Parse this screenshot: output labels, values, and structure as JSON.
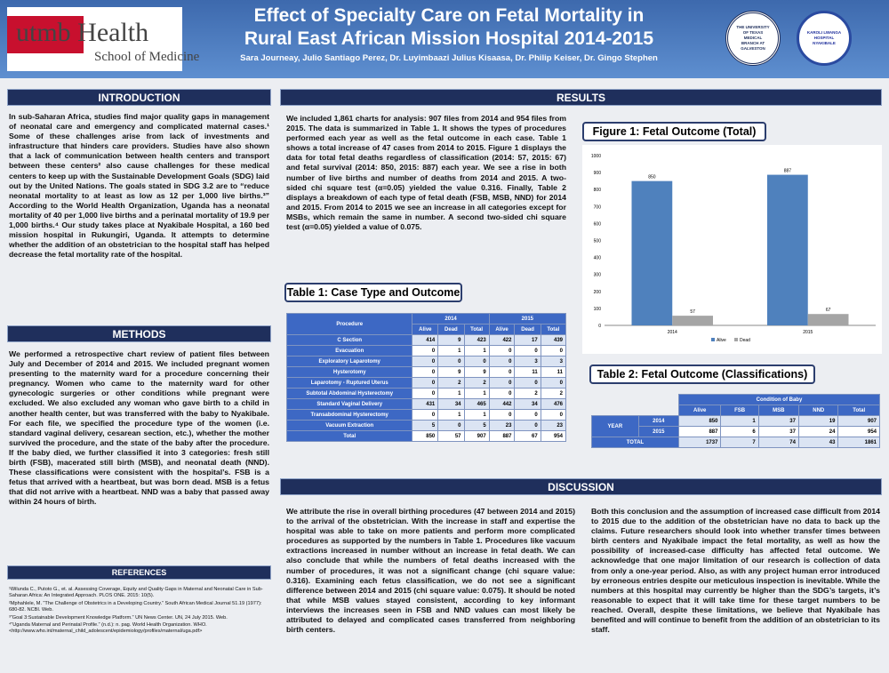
{
  "header": {
    "logo_main": "utmb Health",
    "logo_sub": "School of Medicine",
    "title_line1": "Effect of Specialty Care on Fetal Mortality in",
    "title_line2": "Rural East African Mission Hospital 2014-2015",
    "authors": "Sara Journeay, Julio Santiago Perez, Dr. Luyimbaazi Julius Kisaasa, Dr. Philip Keiser, Dr. Gingo Stephen",
    "seal1": "THE UNIVERSITY OF TEXAS MEDICAL BRANCH AT GALVESTON",
    "seal2": "KAROLI LWANGA HOSPITAL NYAKIBALE"
  },
  "introduction": {
    "heading": "INTRODUCTION",
    "text": "In sub-Saharan Africa, studies find major quality gaps in management of neonatal care and emergency and complicated maternal cases.¹ Some of these challenges arise from lack of investments and infrastructure that hinders care providers. Studies have also shown that a lack of communication between health centers and transport between these centers² also cause challenges for these medical centers to keep up with the Sustainable Development Goals (SDG) laid out by the United Nations. The goals stated in SDG 3.2 are to “reduce neonatal mortality to at least as low as 12 per 1,000 live births.³” According to the World Health Organization, Uganda has a neonatal mortality of 40 per 1,000 live births and a perinatal mortality of 19.9 per 1,000 births.⁴ Our study takes place at Nyakibale Hospital, a 160 bed mission hospital in Rukungiri, Uganda. It attempts to determine whether the addition of an obstetrician to the hospital staff has helped decrease the fetal mortality rate of the hospital."
  },
  "methods": {
    "heading": "METHODS",
    "text": "We performed a retrospective chart review of patient files between July and December of 2014 and 2015. We included pregnant women presenting to the maternity ward for a procedure concerning their pregnancy. Women who came to the maternity ward for other gynecologic surgeries or other conditions while pregnant were excluded. We also excluded any woman who gave birth to a child in another health center, but was transferred with the baby to Nyakibale. For each file, we specified the procedure type of the women (i.e. standard vaginal delivery, cesarean section, etc.), whether the mother survived the procedure, and the state of the baby after the procedure. If the baby died, we further classified it into 3 categories: fresh still birth (FSB), macerated still birth (MSB), and neonatal death (NND). These classifications were consistent with the hospital’s. FSB is a fetus that arrived with a heartbeat, but was born dead. MSB is a fetus that did not arrive with a heartbeat. NND was a baby that passed away within 24 hours of birth."
  },
  "references": {
    "heading": "REFERENCES",
    "items": [
      "¹Wilunda C., Putoto G., et. al. Assessing Coverage, Equity and Quality Gaps in Maternal and Neonatal Care in Sub-Saharan Africa: An Integrated Approach. PLOS ONE. 2015: 10(5).",
      "²Mphahlele, M. “The Challenge of Obstetrics in a Developing Country.” South African Medical Journal 51.19 (1977): 680-82. NCBI. Web.",
      "³“Goal 3:Sustainable Development Knowledge Platform.” UN News Center. UN, 24 July 2015. Web.",
      "⁴“Uganda Maternal and Perinatal Profile.” (n.d.): n. pag. World Health Organization. WHO. <http://www.who.int/maternal_child_adolescent/epidemiology/profiles/maternal/uga.pdf>"
    ]
  },
  "results": {
    "heading": "RESULTS",
    "text": "We included 1,861 charts for analysis: 907 files from 2014 and 954 files from 2015. The data is summarized in Table 1. It shows the types of procedures performed each year as well as the fetal outcome in each case. Table 1 shows a total increase of 47 cases from 2014 to 2015. Figure 1 displays the data for total fetal deaths regardless of classification (2014: 57, 2015: 67) and fetal survival (2014: 850, 2015: 887) each year. We see a rise in both number of live births and number of deaths from 2014 and 2015. A two-sided chi square test (α=0.05) yielded the value 0.316. Finally, Table 2 displays a breakdown of each type of fetal death (FSB, MSB, NND) for 2014 and 2015. From 2014 to 2015 we see an increase in all categories except for MSBs, which remain the same in number. A second two-sided chi square test (α=0.05) yielded a value of 0.075."
  },
  "figure1": {
    "type": "bar",
    "title": "Figure 1: Fetal Outcome (Total)",
    "categories": [
      "2014",
      "2015"
    ],
    "series": [
      {
        "name": "Alive",
        "color": "#4f81bd",
        "values": [
          850,
          887
        ]
      },
      {
        "name": "Dead",
        "color": "#a5a5a5",
        "values": [
          57,
          67
        ]
      }
    ],
    "ylim": [
      0,
      1000
    ],
    "yticks": [
      0,
      100,
      200,
      300,
      400,
      500,
      600,
      700,
      800,
      900,
      1000
    ],
    "grid": false,
    "legend": "bottom"
  },
  "table1": {
    "title": "Table 1: Case Type and Outcome",
    "corner": "Procedure",
    "groups": [
      "2014",
      "2015"
    ],
    "columns": [
      "Alive",
      "Dead",
      "Total",
      "Alive",
      "Dead",
      "Total"
    ],
    "rows": [
      [
        "C Section",
        414,
        9,
        423,
        422,
        17,
        439
      ],
      [
        "Evacuation",
        0,
        1,
        1,
        0,
        0,
        0
      ],
      [
        "Exploratory Laparotomy",
        0,
        0,
        0,
        0,
        3,
        3
      ],
      [
        "Hysterotomy",
        0,
        9,
        9,
        0,
        11,
        11
      ],
      [
        "Laparotomy - Ruptured Uterus",
        0,
        2,
        2,
        0,
        0,
        0
      ],
      [
        "Subtotal Abdominal Hysterectomy",
        0,
        1,
        1,
        0,
        2,
        2
      ],
      [
        "Standard Vaginal Delivery",
        431,
        34,
        465,
        442,
        34,
        476
      ],
      [
        "Transabdominal Hysterectomy",
        0,
        1,
        1,
        0,
        0,
        0
      ],
      [
        "Vacuum Extraction",
        5,
        0,
        5,
        23,
        0,
        23
      ],
      [
        "Total",
        850,
        57,
        907,
        887,
        67,
        954
      ]
    ]
  },
  "table2": {
    "title": "Table 2: Fetal Outcome (Classifications)",
    "group": "Condition of Baby",
    "columns": [
      "Alive",
      "FSB",
      "MSB",
      "NND",
      "Total"
    ],
    "rows": [
      {
        "label": "YEAR",
        "sub": "2014",
        "values": [
          850,
          1,
          37,
          19,
          907
        ]
      },
      {
        "sub": "2015",
        "values": [
          887,
          6,
          37,
          24,
          954
        ]
      },
      {
        "label": "TOTAL",
        "values": [
          1737,
          7,
          74,
          43,
          1861
        ]
      }
    ]
  },
  "discussion": {
    "heading": "DISCUSSION",
    "col1": "We attribute the rise in overall birthing procedures (47 between 2014 and 2015) to the arrival of the obstetrician. With the increase in staff and expertise the hospital was able to take on more patients and perform more complicated procedures as supported by the numbers in Table 1. Procedures like vacuum extractions increased in number without an increase in fetal death. We can also conclude that while the numbers of fetal deaths increased with the number of procedures, it was not a significant change (chi square value: 0.316). Examining each fetus classification, we do not see a significant difference between 2014 and 2015 (chi square value: 0.075). It should be noted that while MSB values stayed consistent, according to key informant interviews the increases seen in FSB and NND values can most likely be attributed to delayed and complicated cases transferred from neighboring birth centers.",
    "col2": "Both this conclusion and the assumption of increased case difficult from 2014 to 2015 due to the addition of the obstetrician have no data to back up the claims. Future researchers should look into whether transfer times between birth centers and Nyakibale impact the fetal mortality, as well as how the possibility of increased-case difficulty has affected fetal outcome. We acknowledge that one major limitation of our research is collection of data from only a one-year period. Also, as with any project human error introduced by erroneous entries despite our meticulous inspection is inevitable. While the numbers at this hospital may currently be higher than the SDG’s targets, it’s reasonable to expect that it will take time for these target numbers to be reached. Overall, despite these limitations, we believe that Nyakibale has benefited and will continue to benefit from the addition of an obstetrician to its staff."
  }
}
